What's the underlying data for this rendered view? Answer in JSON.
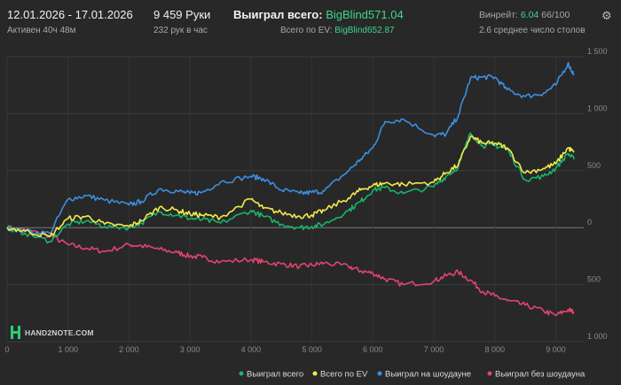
{
  "header": {
    "date_range": "12.01.2026 - 17.01.2026",
    "active_time": "Активен 40ч 48м",
    "hands": "9 459 Руки",
    "hands_per_hour": "232 рук в час",
    "won_total_label": "Выиграл всего:",
    "won_total_value": "BigBlind571.04",
    "ev_total_label": "Всего по EV:",
    "ev_total_value": "BigBlind652.87",
    "winrate_label": "Винрейт:",
    "winrate_value": "6.04",
    "winrate_suffix": "66/100",
    "avg_tables": "2.6 среднее число столов"
  },
  "logo": {
    "text": "HAND2NOTE.COM"
  },
  "colors": {
    "background": "#282828",
    "won_total": "#19b36b",
    "ev": "#f2ea4a",
    "showdown": "#3d8ee0",
    "non_showdown": "#e0456e",
    "accent_green": "#3dd68c"
  },
  "chart_data": {
    "type": "line",
    "xlabel": "",
    "ylabel": "",
    "xlim": [
      0,
      9459
    ],
    "ylim": [
      -1000,
      1500
    ],
    "x_ticks": [
      0,
      1000,
      2000,
      3000,
      4000,
      5000,
      6000,
      7000,
      8000,
      9000
    ],
    "x_tick_labels": [
      "0",
      "1 000",
      "2 000",
      "3 000",
      "4 000",
      "5 000",
      "6 000",
      "7 000",
      "8 000",
      "9 000"
    ],
    "y_ticks": [
      1500,
      1000,
      500,
      0,
      -500,
      -1000
    ],
    "y_tick_labels": [
      "1 500",
      "1 000",
      "500",
      "0",
      "500",
      "1 000"
    ],
    "grid": true,
    "legend_position": "bottom-right",
    "series": [
      {
        "name": "Выиграл всего",
        "color": "#19b36b",
        "points": [
          [
            0,
            0
          ],
          [
            300,
            -50
          ],
          [
            700,
            -120
          ],
          [
            1000,
            30
          ],
          [
            1300,
            60
          ],
          [
            1600,
            10
          ],
          [
            2000,
            0
          ],
          [
            2200,
            40
          ],
          [
            2500,
            140
          ],
          [
            2800,
            110
          ],
          [
            3000,
            80
          ],
          [
            3200,
            70
          ],
          [
            3500,
            40
          ],
          [
            4000,
            150
          ],
          [
            4200,
            100
          ],
          [
            4500,
            30
          ],
          [
            4800,
            0
          ],
          [
            5000,
            10
          ],
          [
            5200,
            30
          ],
          [
            5600,
            150
          ],
          [
            5800,
            230
          ],
          [
            6000,
            330
          ],
          [
            6200,
            350
          ],
          [
            6500,
            300
          ],
          [
            7000,
            360
          ],
          [
            7200,
            450
          ],
          [
            7400,
            530
          ],
          [
            7600,
            830
          ],
          [
            7800,
            720
          ],
          [
            8000,
            720
          ],
          [
            8200,
            690
          ],
          [
            8500,
            420
          ],
          [
            8800,
            450
          ],
          [
            9000,
            520
          ],
          [
            9200,
            650
          ],
          [
            9300,
            600
          ]
        ]
      },
      {
        "name": "Всего по EV",
        "color": "#f2ea4a",
        "points": [
          [
            0,
            0
          ],
          [
            300,
            -30
          ],
          [
            700,
            -80
          ],
          [
            1000,
            80
          ],
          [
            1300,
            100
          ],
          [
            1600,
            30
          ],
          [
            2000,
            10
          ],
          [
            2200,
            60
          ],
          [
            2500,
            180
          ],
          [
            2800,
            150
          ],
          [
            3000,
            120
          ],
          [
            3200,
            110
          ],
          [
            3500,
            90
          ],
          [
            4000,
            250
          ],
          [
            4200,
            170
          ],
          [
            4500,
            130
          ],
          [
            4800,
            100
          ],
          [
            5000,
            110
          ],
          [
            5200,
            150
          ],
          [
            5600,
            260
          ],
          [
            5800,
            330
          ],
          [
            6000,
            370
          ],
          [
            6200,
            390
          ],
          [
            6500,
            380
          ],
          [
            7000,
            400
          ],
          [
            7200,
            480
          ],
          [
            7400,
            550
          ],
          [
            7600,
            800
          ],
          [
            7800,
            740
          ],
          [
            8000,
            740
          ],
          [
            8200,
            700
          ],
          [
            8500,
            480
          ],
          [
            8800,
            520
          ],
          [
            9000,
            560
          ],
          [
            9200,
            700
          ],
          [
            9300,
            660
          ]
        ]
      },
      {
        "name": "Выиграл на шоудауне",
        "color": "#3d8ee0",
        "points": [
          [
            0,
            0
          ],
          [
            300,
            -30
          ],
          [
            700,
            -50
          ],
          [
            1000,
            250
          ],
          [
            1300,
            280
          ],
          [
            1600,
            240
          ],
          [
            2000,
            200
          ],
          [
            2200,
            230
          ],
          [
            2500,
            340
          ],
          [
            2800,
            320
          ],
          [
            3000,
            300
          ],
          [
            3200,
            310
          ],
          [
            3500,
            400
          ],
          [
            4000,
            450
          ],
          [
            4200,
            430
          ],
          [
            4500,
            330
          ],
          [
            4800,
            300
          ],
          [
            5000,
            310
          ],
          [
            5200,
            320
          ],
          [
            5600,
            500
          ],
          [
            5800,
            600
          ],
          [
            6000,
            700
          ],
          [
            6200,
            930
          ],
          [
            6500,
            950
          ],
          [
            7000,
            810
          ],
          [
            7200,
            820
          ],
          [
            7400,
            980
          ],
          [
            7600,
            1310
          ],
          [
            7800,
            1320
          ],
          [
            8000,
            1320
          ],
          [
            8200,
            1210
          ],
          [
            8500,
            1150
          ],
          [
            8800,
            1180
          ],
          [
            9000,
            1250
          ],
          [
            9200,
            1440
          ],
          [
            9300,
            1340
          ]
        ]
      },
      {
        "name": "Выиграл без шоудауна",
        "color": "#e0456e",
        "points": [
          [
            0,
            0
          ],
          [
            300,
            -20
          ],
          [
            700,
            -70
          ],
          [
            1000,
            -150
          ],
          [
            1300,
            -180
          ],
          [
            1600,
            -210
          ],
          [
            2000,
            -150
          ],
          [
            2200,
            -160
          ],
          [
            2500,
            -190
          ],
          [
            2800,
            -220
          ],
          [
            3000,
            -250
          ],
          [
            3200,
            -260
          ],
          [
            3500,
            -300
          ],
          [
            4000,
            -280
          ],
          [
            4200,
            -300
          ],
          [
            4500,
            -320
          ],
          [
            4800,
            -340
          ],
          [
            5000,
            -330
          ],
          [
            5200,
            -310
          ],
          [
            5600,
            -340
          ],
          [
            5800,
            -380
          ],
          [
            6000,
            -400
          ],
          [
            6200,
            -450
          ],
          [
            6500,
            -500
          ],
          [
            7000,
            -470
          ],
          [
            7200,
            -420
          ],
          [
            7400,
            -390
          ],
          [
            7600,
            -460
          ],
          [
            7800,
            -560
          ],
          [
            8000,
            -600
          ],
          [
            8200,
            -640
          ],
          [
            8500,
            -680
          ],
          [
            8800,
            -730
          ],
          [
            9000,
            -770
          ],
          [
            9200,
            -720
          ],
          [
            9300,
            -740
          ]
        ]
      }
    ]
  }
}
